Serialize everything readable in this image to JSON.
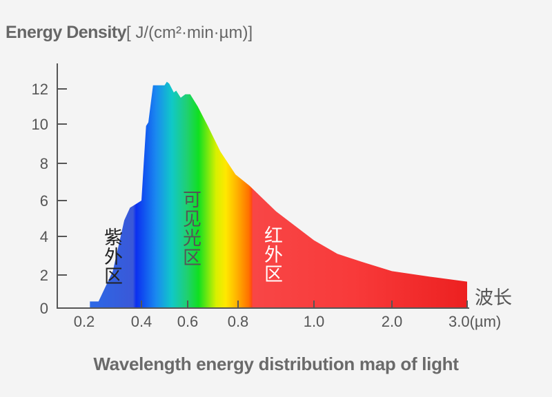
{
  "chart_data": {
    "type": "area",
    "title": "Wavelength energy distribution map of light",
    "ylabel_bold": "Energy Density",
    "ylabel_unit": "[ J/(cm²·min·µm)]",
    "xlabel": "波长",
    "xunit_tick_suffix": "(µm)",
    "x_ticks": [
      0.2,
      0.4,
      0.6,
      0.8,
      1.0,
      2.0,
      3.0
    ],
    "x_tick_labels": [
      "0.2",
      "0.4",
      "0.6",
      "0.8",
      "1.0",
      "2.0",
      "3.0(µm)"
    ],
    "y_ticks": [
      0,
      2,
      4,
      6,
      8,
      10,
      12
    ],
    "y_tick_labels": [
      "0",
      "2",
      "4",
      "6",
      "8",
      "10",
      "12"
    ],
    "ylim": [
      0,
      13
    ],
    "xlim": [
      0.15,
      3.0
    ],
    "grid": false,
    "x": [
      0.22,
      0.25,
      0.3,
      0.34,
      0.36,
      0.38,
      0.4,
      0.41,
      0.42,
      0.43,
      0.45,
      0.47,
      0.5,
      0.51,
      0.52,
      0.54,
      0.55,
      0.57,
      0.59,
      0.61,
      0.64,
      0.68,
      0.73,
      0.79,
      0.83,
      0.9,
      1.0,
      1.3,
      1.6,
      2.0,
      2.5,
      3.0
    ],
    "values": [
      0.4,
      0.4,
      2.2,
      4.9,
      5.6,
      5.8,
      6.0,
      8.0,
      9.9,
      10.1,
      12.2,
      12.2,
      12.2,
      12.4,
      12.3,
      11.8,
      11.9,
      11.5,
      11.7,
      11.7,
      11.0,
      9.9,
      8.6,
      7.4,
      6.8,
      5.4,
      3.8,
      3.1,
      2.7,
      2.2,
      1.9,
      1.6
    ],
    "regions": [
      {
        "label": "紫外区",
        "range": [
          0.2,
          0.4
        ]
      },
      {
        "label": "可见光区",
        "range": [
          0.4,
          0.8
        ]
      },
      {
        "label": "红外区",
        "range": [
          0.8,
          3.0
        ]
      }
    ],
    "colors": {
      "axis": "#555555",
      "uv": "#2f5fe0",
      "ir": "#f03a3a",
      "text": "#666666"
    }
  }
}
